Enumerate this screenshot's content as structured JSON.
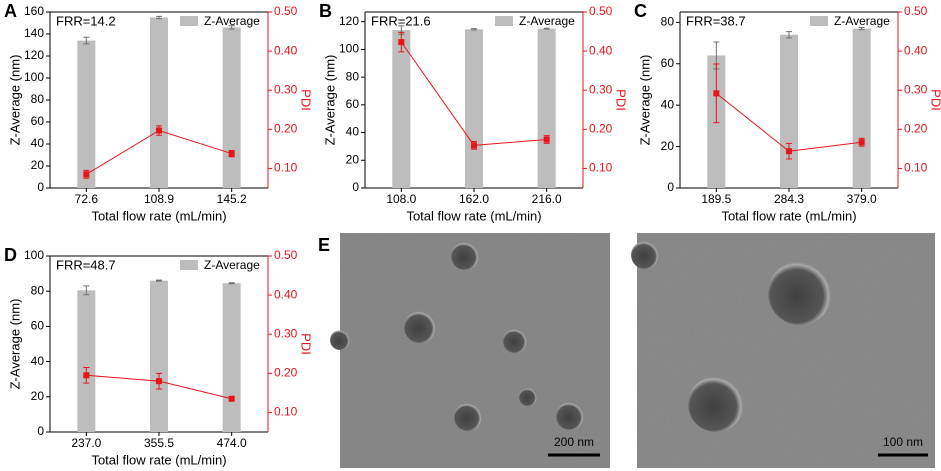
{
  "chart_data": [
    {
      "type": "bar",
      "label": "A",
      "annotation": "FRR=14.2",
      "xlabel": "Total flow rate (mL/min)",
      "ylabel": "Z-Average (nm)",
      "y2label": "PDI",
      "categories": [
        "72.6",
        "108.9",
        "145.2"
      ],
      "series": [
        {
          "name": "Z-Average",
          "type": "bar",
          "color": "#bdbdbd",
          "error_color": "#707070",
          "values": [
            134,
            155,
            146
          ],
          "errors": [
            3,
            1,
            1.5
          ]
        },
        {
          "type": "line",
          "axis": "y2",
          "color": "#e8141b",
          "values": [
            0.085,
            0.197,
            0.138
          ],
          "errors": [
            0.01,
            0.012,
            0.008
          ]
        }
      ],
      "ylim": [
        0,
        160
      ],
      "yticks": [
        0,
        20,
        40,
        60,
        80,
        100,
        120,
        140,
        160
      ],
      "y2lim": [
        0.05,
        0.5
      ],
      "y2ticks": [
        {
          "value": 0.1,
          "label": "0.10"
        },
        {
          "value": 0.2,
          "label": "0.20"
        },
        {
          "value": 0.3,
          "label": "0.30"
        },
        {
          "value": 0.4,
          "label": "0.40"
        },
        {
          "value": 0.5,
          "label": "0.50"
        }
      ]
    },
    {
      "type": "bar",
      "label": "B",
      "annotation": "FRR=21.6",
      "xlabel": "Total flow rate (mL/min)",
      "ylabel": "Z-Average (nm)",
      "y2label": "PDI",
      "categories": [
        "108.0",
        "162.0",
        "216.0"
      ],
      "series": [
        {
          "name": "Z-Average",
          "type": "bar",
          "color": "#bdbdbd",
          "error_color": "#707070",
          "values": [
            114,
            114.5,
            115
          ],
          "errors": [
            3,
            0.5,
            0.3
          ]
        },
        {
          "type": "line",
          "axis": "y2",
          "color": "#e8141b",
          "values": [
            0.423,
            0.159,
            0.174
          ],
          "errors": [
            0.025,
            0.01,
            0.01
          ]
        }
      ],
      "ylim": [
        0,
        127
      ],
      "yticks": [
        0,
        20,
        40,
        60,
        80,
        100,
        120
      ],
      "y2lim": [
        0.05,
        0.5
      ],
      "y2ticks": [
        {
          "value": 0.1,
          "label": "0.10"
        },
        {
          "value": 0.2,
          "label": "0.20"
        },
        {
          "value": 0.3,
          "label": "0.30"
        },
        {
          "value": 0.4,
          "label": "0.40"
        },
        {
          "value": 0.5,
          "label": "0.50"
        }
      ]
    },
    {
      "type": "bar",
      "label": "C",
      "annotation": "FRR=38.7",
      "xlabel": "Total flow rate (mL/min)",
      "ylabel": "Z-Average (nm)",
      "y2label": "PDI",
      "categories": [
        "189.5",
        "284.3",
        "379.0"
      ],
      "series": [
        {
          "name": "Z-Average",
          "type": "bar",
          "color": "#bdbdbd",
          "error_color": "#707070",
          "values": [
            64,
            74,
            77
          ],
          "errors": [
            6.5,
            1.5,
            0.5
          ]
        },
        {
          "type": "line",
          "axis": "y2",
          "color": "#e8141b",
          "values": [
            0.292,
            0.144,
            0.167
          ],
          "errors": [
            0.075,
            0.02,
            0.01
          ]
        }
      ],
      "ylim": [
        0,
        85
      ],
      "yticks": [
        0,
        20,
        40,
        60,
        80
      ],
      "y2lim": [
        0.05,
        0.5
      ],
      "y2ticks": [
        {
          "value": 0.1,
          "label": "0.10"
        },
        {
          "value": 0.2,
          "label": "0.20"
        },
        {
          "value": 0.3,
          "label": "0.30"
        },
        {
          "value": 0.4,
          "label": "0.40"
        },
        {
          "value": 0.5,
          "label": "0.50"
        }
      ]
    },
    {
      "type": "bar",
      "label": "D",
      "annotation": "FRR=48.7",
      "xlabel": "Total flow rate (mL/min)",
      "ylabel": "Z-Average (nm)",
      "y2label": "PDI",
      "categories": [
        "237.0",
        "355.5",
        "474.0"
      ],
      "series": [
        {
          "name": "Z-Average",
          "type": "bar",
          "color": "#bdbdbd",
          "error_color": "#707070",
          "values": [
            80.5,
            86,
            84.5
          ],
          "errors": [
            2.5,
            0.3,
            0.3
          ]
        },
        {
          "type": "line",
          "axis": "y2",
          "color": "#e8141b",
          "values": [
            0.195,
            0.18,
            0.135
          ],
          "errors": [
            0.02,
            0.02,
            0.005
          ]
        }
      ],
      "ylim": [
        0,
        100
      ],
      "yticks": [
        0,
        20,
        40,
        60,
        80,
        100
      ],
      "y2lim": [
        0.05,
        0.5
      ],
      "y2ticks": [
        {
          "value": 0.1,
          "label": "0.10"
        },
        {
          "value": 0.2,
          "label": "0.20"
        },
        {
          "value": 0.3,
          "label": "0.30"
        },
        {
          "value": 0.4,
          "label": "0.40"
        },
        {
          "value": 0.5,
          "label": "0.50"
        }
      ]
    }
  ],
  "images": {
    "label": "E",
    "scale_bars": [
      "200 nm",
      "100 nm"
    ]
  }
}
